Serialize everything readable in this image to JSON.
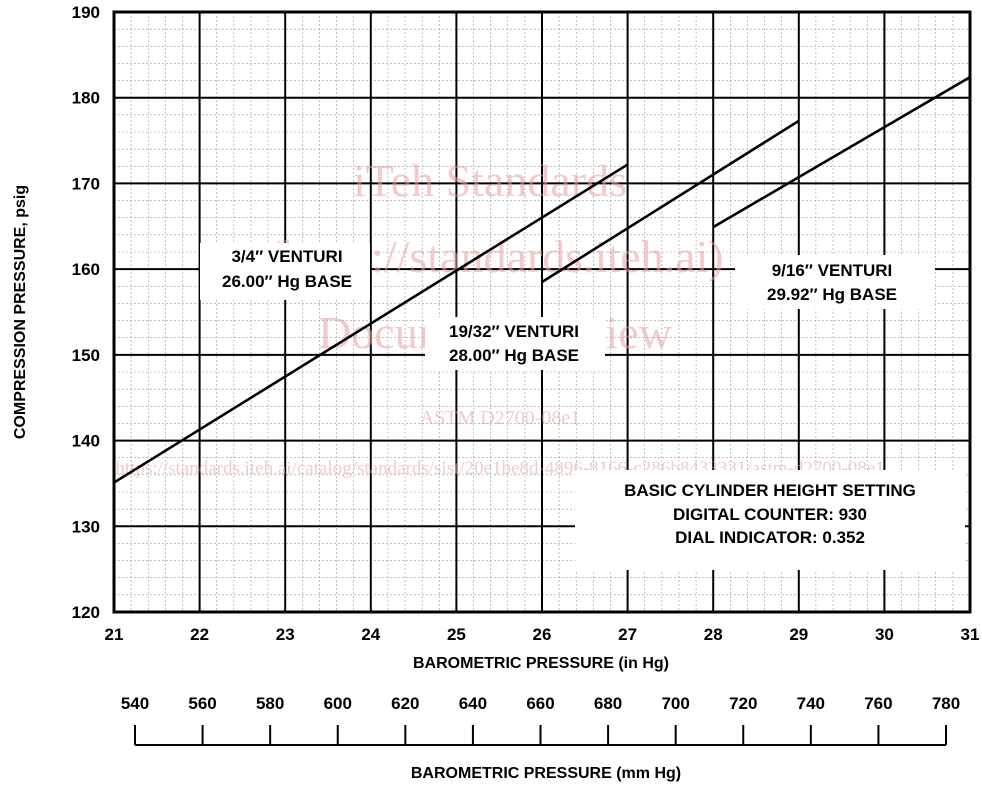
{
  "chart_data": {
    "type": "line",
    "title": "",
    "xlabel": "BAROMETRIC PRESSURE (in Hg)",
    "ylabel": "COMPRESSION PRESSURE, psig",
    "xlim": [
      21,
      31
    ],
    "ylim": [
      120,
      190
    ],
    "x_ticks": [
      "21",
      "22",
      "23",
      "24",
      "25",
      "26",
      "27",
      "28",
      "29",
      "30",
      "31"
    ],
    "y_ticks": [
      "120",
      "130",
      "140",
      "150",
      "160",
      "170",
      "180",
      "190"
    ],
    "grid": true,
    "secondary_axis": {
      "label": "BAROMETRIC PRESSURE (mm Hg)",
      "ticks": [
        "540",
        "560",
        "580",
        "600",
        "620",
        "640",
        "660",
        "680",
        "700",
        "720",
        "740",
        "760",
        "780"
      ],
      "tick_values": [
        540,
        560,
        580,
        600,
        620,
        640,
        660,
        680,
        700,
        720,
        740,
        760,
        780
      ]
    },
    "series": [
      {
        "name": "3/4″ VENTURI 26.00″ Hg BASE",
        "label_lines": [
          "3/4″ VENTURI",
          "26.00″ Hg BASE"
        ],
        "x": [
          21,
          27
        ],
        "y": [
          135.1,
          172.2
        ]
      },
      {
        "name": "19/32″ VENTURI 28.00″ Hg BASE",
        "label_lines": [
          "19/32″ VENTURI",
          "28.00″ Hg BASE"
        ],
        "x": [
          26,
          29
        ],
        "y": [
          158.5,
          177.3
        ]
      },
      {
        "name": "9/16″ VENTURI 29.92″ Hg BASE",
        "label_lines": [
          "9/16″ VENTURI",
          "29.92″ Hg BASE"
        ],
        "x": [
          28,
          31
        ],
        "y": [
          164.9,
          182.4
        ]
      }
    ],
    "annotation": {
      "lines": [
        "BASIC CYLINDER HEIGHT SETTING",
        "DIGITAL COUNTER: 930",
        "DIAL INDICATOR: 0.352"
      ]
    }
  },
  "watermark": {
    "lines": [
      "iTeh Standards",
      "(https://standards.iteh.ai)",
      "Document Preview",
      "ASTM D2700-08e1",
      "https://standards.iteh.ai/catalog/standards/sist/20e1be8d-4896-8166-c286b8433331/astm-d2700-08e1"
    ],
    "color": "#e8a0a0"
  }
}
